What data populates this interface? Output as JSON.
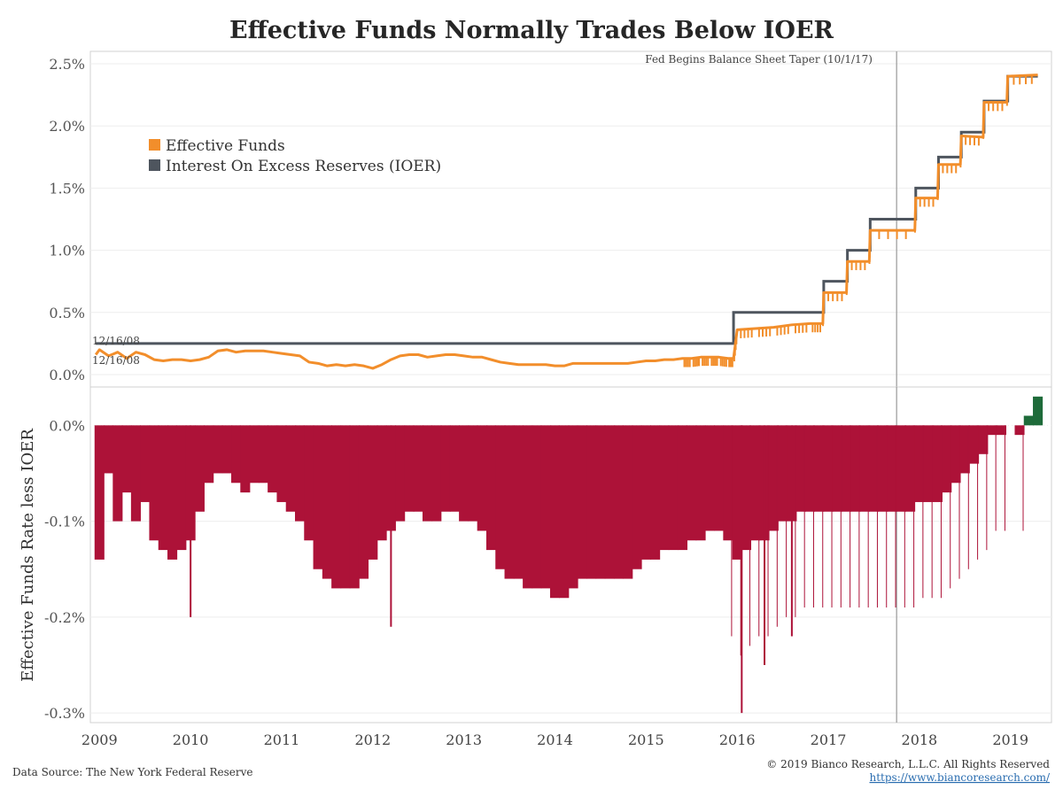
{
  "chart_data": [
    {
      "type": "line",
      "title": "Effective Funds Normally Trades Below IOER",
      "xlim": [
        2008.9,
        2019.45
      ],
      "ylim": [
        -0.1,
        2.6
      ],
      "y_ticks": [
        {
          "value": 2.5,
          "label": "2.5%"
        },
        {
          "value": 2.0,
          "label": "2.0%"
        },
        {
          "value": 1.5,
          "label": "1.5%"
        },
        {
          "value": 1.0,
          "label": "1.0%"
        },
        {
          "value": 0.5,
          "label": "0.5%"
        },
        {
          "value": 0.0,
          "label": "0.0%"
        }
      ],
      "legend": "top-left",
      "legend_entries": [
        {
          "name": "Effective Funds",
          "color": "#f28e2b"
        },
        {
          "name": "Interest On Excess Reserves (IOER)",
          "color": "#4e555e"
        }
      ],
      "series": [
        {
          "name": "Interest On Excess Reserves (IOER)",
          "color": "#4e555e",
          "step": true,
          "x": [
            2008.96,
            2015.96,
            2016.95,
            2017.21,
            2017.46,
            2017.96,
            2018.21,
            2018.46,
            2018.71,
            2018.97,
            2019.3
          ],
          "y": [
            0.25,
            0.5,
            0.75,
            1.0,
            1.25,
            1.5,
            1.75,
            1.95,
            2.2,
            2.4,
            2.4
          ]
        },
        {
          "name": "Effective Funds",
          "color": "#f28e2b",
          "x": [
            2008.96,
            2009.0,
            2009.1,
            2009.2,
            2009.3,
            2009.4,
            2009.5,
            2009.6,
            2009.7,
            2009.8,
            2009.9,
            2010.0,
            2010.1,
            2010.2,
            2010.3,
            2010.4,
            2010.5,
            2010.6,
            2010.7,
            2010.8,
            2010.9,
            2011.0,
            2011.1,
            2011.2,
            2011.3,
            2011.4,
            2011.5,
            2011.6,
            2011.7,
            2011.8,
            2011.9,
            2012.0,
            2012.1,
            2012.2,
            2012.3,
            2012.4,
            2012.5,
            2012.6,
            2012.7,
            2012.8,
            2012.9,
            2013.0,
            2013.1,
            2013.2,
            2013.3,
            2013.4,
            2013.5,
            2013.6,
            2013.7,
            2013.8,
            2013.9,
            2014.0,
            2014.1,
            2014.2,
            2014.3,
            2014.4,
            2014.5,
            2014.6,
            2014.7,
            2014.8,
            2014.9,
            2015.0,
            2015.1,
            2015.2,
            2015.3,
            2015.4,
            2015.5,
            2015.6,
            2015.7,
            2015.8,
            2015.9,
            2015.96,
            2016.0,
            2016.2,
            2016.4,
            2016.6,
            2016.8,
            2016.94,
            2016.95,
            2017.2,
            2017.21,
            2017.45,
            2017.46,
            2017.95,
            2017.96,
            2018.2,
            2018.21,
            2018.45,
            2018.46,
            2018.7,
            2018.71,
            2018.96,
            2018.97,
            2019.3
          ],
          "y": [
            0.16,
            0.2,
            0.15,
            0.18,
            0.13,
            0.18,
            0.16,
            0.12,
            0.11,
            0.12,
            0.12,
            0.11,
            0.12,
            0.14,
            0.19,
            0.2,
            0.18,
            0.19,
            0.19,
            0.19,
            0.18,
            0.17,
            0.16,
            0.15,
            0.1,
            0.09,
            0.07,
            0.08,
            0.07,
            0.08,
            0.07,
            0.05,
            0.08,
            0.12,
            0.15,
            0.16,
            0.16,
            0.14,
            0.15,
            0.16,
            0.16,
            0.15,
            0.14,
            0.14,
            0.12,
            0.1,
            0.09,
            0.08,
            0.08,
            0.08,
            0.08,
            0.07,
            0.07,
            0.09,
            0.09,
            0.09,
            0.09,
            0.09,
            0.09,
            0.09,
            0.1,
            0.11,
            0.11,
            0.12,
            0.12,
            0.13,
            0.13,
            0.14,
            0.14,
            0.14,
            0.13,
            0.13,
            0.36,
            0.37,
            0.38,
            0.4,
            0.41,
            0.41,
            0.66,
            0.66,
            0.91,
            0.91,
            1.16,
            1.16,
            1.42,
            1.42,
            1.69,
            1.69,
            1.92,
            1.91,
            2.19,
            2.19,
            2.4,
            2.41
          ]
        }
      ],
      "annotations": [
        {
          "text": "12/16/08",
          "color": "#444444"
        },
        {
          "text": "12/16/08",
          "color": "#f28e2b"
        },
        {
          "text": "Fed Begins Balance Sheet Taper (10/1/17)",
          "x": 2017.75
        }
      ]
    },
    {
      "type": "bar",
      "ylabel": "Effective Funds Rate less IOER",
      "xlim": [
        2008.9,
        2019.45
      ],
      "ylim": [
        -0.31,
        0.04
      ],
      "y_ticks": [
        {
          "value": 0.0,
          "label": "0.0%"
        },
        {
          "value": -0.1,
          "label": "-0.1%"
        },
        {
          "value": -0.2,
          "label": "-0.2%"
        },
        {
          "value": -0.3,
          "label": "-0.3%"
        }
      ],
      "x_ticks": [
        "2009",
        "2010",
        "2011",
        "2012",
        "2013",
        "2014",
        "2015",
        "2016",
        "2017",
        "2018",
        "2019"
      ],
      "negative_color": "#ad1238",
      "positive_color": "#1e6b3a",
      "series": [
        {
          "name": "Effective Funds Rate less IOER",
          "x": [
            2009.0,
            2009.1,
            2009.2,
            2009.3,
            2009.4,
            2009.5,
            2009.6,
            2009.7,
            2009.8,
            2009.9,
            2010.0,
            2010.1,
            2010.2,
            2010.3,
            2010.4,
            2010.5,
            2010.6,
            2010.7,
            2010.8,
            2010.9,
            2011.0,
            2011.1,
            2011.2,
            2011.3,
            2011.4,
            2011.5,
            2011.6,
            2011.7,
            2011.8,
            2011.9,
            2012.0,
            2012.1,
            2012.2,
            2012.3,
            2012.4,
            2012.5,
            2012.6,
            2012.7,
            2012.8,
            2012.9,
            2013.0,
            2013.1,
            2013.2,
            2013.3,
            2013.4,
            2013.5,
            2013.6,
            2013.7,
            2013.8,
            2013.9,
            2014.0,
            2014.1,
            2014.2,
            2014.3,
            2014.4,
            2014.5,
            2014.6,
            2014.7,
            2014.8,
            2014.9,
            2015.0,
            2015.1,
            2015.2,
            2015.3,
            2015.4,
            2015.5,
            2015.6,
            2015.7,
            2015.8,
            2015.9,
            2016.0,
            2016.1,
            2016.2,
            2016.3,
            2016.4,
            2016.5,
            2016.6,
            2016.7,
            2016.8,
            2016.9,
            2017.0,
            2017.1,
            2017.2,
            2017.3,
            2017.4,
            2017.5,
            2017.6,
            2017.7,
            2017.8,
            2017.9,
            2018.0,
            2018.1,
            2018.2,
            2018.3,
            2018.4,
            2018.5,
            2018.6,
            2018.7,
            2018.8,
            2018.9,
            2019.0,
            2019.1,
            2019.2,
            2019.3
          ],
          "values": [
            -0.14,
            -0.05,
            -0.1,
            -0.07,
            -0.1,
            -0.08,
            -0.12,
            -0.13,
            -0.14,
            -0.13,
            -0.12,
            -0.09,
            -0.06,
            -0.05,
            -0.05,
            -0.06,
            -0.07,
            -0.06,
            -0.06,
            -0.07,
            -0.08,
            -0.09,
            -0.1,
            -0.12,
            -0.15,
            -0.16,
            -0.17,
            -0.17,
            -0.17,
            -0.16,
            -0.14,
            -0.12,
            -0.11,
            -0.1,
            -0.09,
            -0.09,
            -0.1,
            -0.1,
            -0.09,
            -0.09,
            -0.1,
            -0.1,
            -0.11,
            -0.13,
            -0.15,
            -0.16,
            -0.16,
            -0.17,
            -0.17,
            -0.17,
            -0.18,
            -0.18,
            -0.17,
            -0.16,
            -0.16,
            -0.16,
            -0.16,
            -0.16,
            -0.16,
            -0.15,
            -0.14,
            -0.14,
            -0.13,
            -0.13,
            -0.13,
            -0.12,
            -0.12,
            -0.11,
            -0.11,
            -0.12,
            -0.14,
            -0.13,
            -0.12,
            -0.12,
            -0.11,
            -0.1,
            -0.1,
            -0.09,
            -0.09,
            -0.09,
            -0.09,
            -0.09,
            -0.09,
            -0.09,
            -0.09,
            -0.09,
            -0.09,
            -0.09,
            -0.09,
            -0.09,
            -0.08,
            -0.08,
            -0.08,
            -0.07,
            -0.06,
            -0.05,
            -0.04,
            -0.03,
            -0.01,
            -0.01,
            0.0,
            -0.01,
            0.01,
            0.03
          ],
          "spikes": [
            {
              "x": 2010.0,
              "value": -0.2
            },
            {
              "x": 2012.2,
              "value": -0.21
            },
            {
              "x": 2016.05,
              "value": -0.3
            },
            {
              "x": 2016.3,
              "value": -0.25
            },
            {
              "x": 2016.6,
              "value": -0.22
            }
          ]
        }
      ],
      "annotations": [
        {
          "text": "Fed Begins Balance Sheet Taper (10/1/17)",
          "x": 2017.75
        }
      ]
    }
  ],
  "footer": {
    "source": "Data Source: The New York Federal Reserve",
    "copyright": "© 2019 Bianco Research, L.L.C. All Rights Reserved",
    "url": "https://www.biancoresearch.com/"
  }
}
